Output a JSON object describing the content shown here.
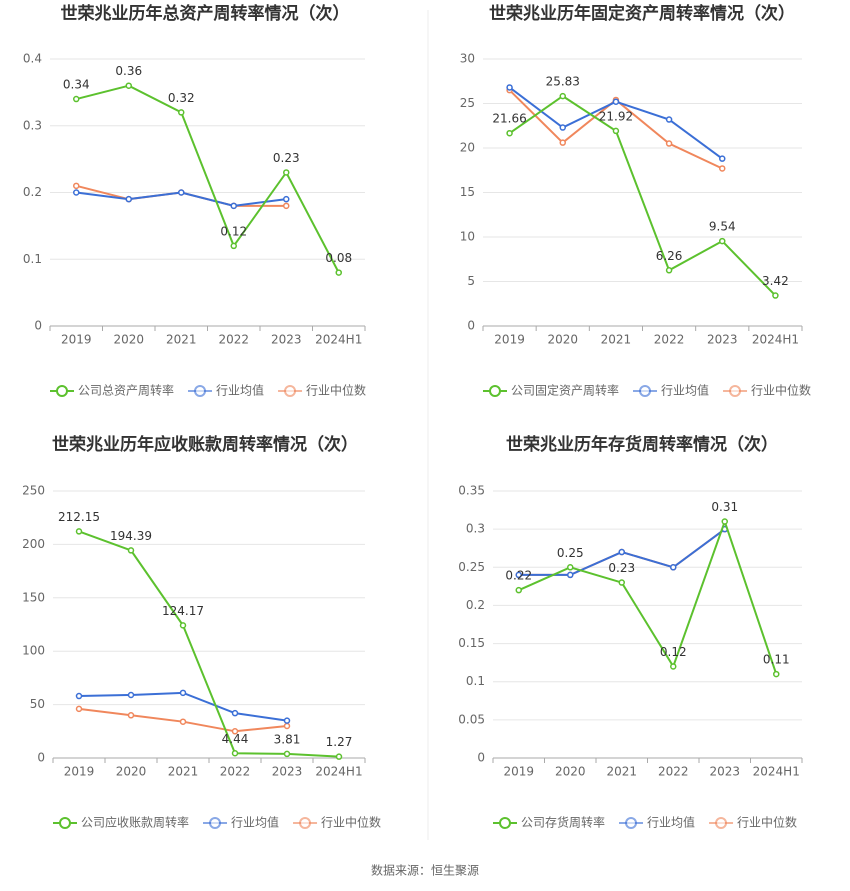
{
  "chart_data": [
    {
      "type": "line",
      "title": "世荣兆业历年总资产周转率情况（次）",
      "categories": [
        "2019",
        "2020",
        "2021",
        "2022",
        "2023",
        "2024H1"
      ],
      "ylim": [
        0,
        0.4
      ],
      "yticks": [
        0,
        0.1,
        0.2,
        0.3,
        0.4
      ],
      "grid": true,
      "legend": "bottom",
      "series": [
        {
          "name": "公司总资产周转率",
          "color": "#5cc12e",
          "values": [
            0.34,
            0.36,
            0.32,
            0.12,
            0.23,
            0.08
          ],
          "labels": true
        },
        {
          "name": "行业均值",
          "color": "#3b6fd6",
          "values": [
            0.2,
            0.19,
            0.2,
            0.18,
            0.19,
            null
          ]
        },
        {
          "name": "行业中位数",
          "color": "#f0875c",
          "values": [
            0.21,
            0.19,
            0.2,
            0.18,
            0.18,
            null
          ]
        }
      ]
    },
    {
      "type": "line",
      "title": "世荣兆业历年固定资产周转率情况（次）",
      "categories": [
        "2019",
        "2020",
        "2021",
        "2022",
        "2023",
        "2024H1"
      ],
      "ylim": [
        0,
        30
      ],
      "yticks": [
        0,
        5,
        10,
        15,
        20,
        25,
        30
      ],
      "grid": true,
      "legend": "bottom",
      "series": [
        {
          "name": "公司固定资产周转率",
          "color": "#5cc12e",
          "values": [
            21.66,
            25.83,
            21.92,
            6.26,
            9.54,
            3.42
          ],
          "labels": true
        },
        {
          "name": "行业均值",
          "color": "#3b6fd6",
          "values": [
            26.8,
            22.3,
            25.2,
            23.2,
            18.8,
            null
          ]
        },
        {
          "name": "行业中位数",
          "color": "#f0875c",
          "values": [
            26.5,
            20.6,
            25.4,
            20.5,
            17.7,
            null
          ]
        }
      ]
    },
    {
      "type": "line",
      "title": "世荣兆业历年应收账款周转率情况（次）",
      "categories": [
        "2019",
        "2020",
        "2021",
        "2022",
        "2023",
        "2024H1"
      ],
      "ylim": [
        0,
        250
      ],
      "yticks": [
        0,
        50,
        100,
        150,
        200,
        250
      ],
      "grid": true,
      "legend": "bottom",
      "series": [
        {
          "name": "公司应收账款周转率",
          "color": "#5cc12e",
          "values": [
            212.15,
            194.39,
            124.17,
            4.44,
            3.81,
            1.27
          ],
          "labels": true
        },
        {
          "name": "行业均值",
          "color": "#3b6fd6",
          "values": [
            58,
            59,
            61,
            42,
            35,
            null
          ]
        },
        {
          "name": "行业中位数",
          "color": "#f0875c",
          "values": [
            46,
            40,
            34,
            25,
            30,
            null
          ]
        }
      ]
    },
    {
      "type": "line",
      "title": "世荣兆业历年存货周转率情况（次）",
      "categories": [
        "2019",
        "2020",
        "2021",
        "2022",
        "2023",
        "2024H1"
      ],
      "ylim": [
        0,
        0.35
      ],
      "yticks": [
        0,
        0.05,
        0.1,
        0.15,
        0.2,
        0.25,
        0.3,
        0.35
      ],
      "grid": true,
      "legend": "bottom",
      "series": [
        {
          "name": "公司存货周转率",
          "color": "#5cc12e",
          "values": [
            0.22,
            0.25,
            0.23,
            0.12,
            0.31,
            0.11
          ],
          "labels": true
        },
        {
          "name": "行业均值",
          "color": "#3b6fd6",
          "values": [
            0.24,
            0.24,
            0.27,
            0.25,
            0.3,
            null
          ]
        },
        {
          "name": "行业中位数",
          "color": "#f0875c",
          "values": [
            0.24,
            0.24,
            0.27,
            0.25,
            0.3,
            null
          ]
        }
      ]
    }
  ],
  "source": "数据来源：恒生聚源"
}
